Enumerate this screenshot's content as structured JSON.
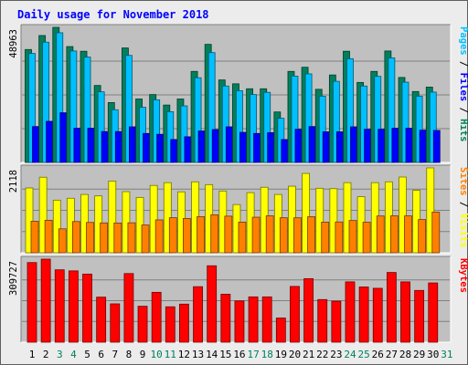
{
  "title": "Daily usage for November 2018",
  "chart_data": [
    {
      "type": "bar",
      "name": "hits-files-pages",
      "categories": [
        "1",
        "2",
        "3",
        "4",
        "5",
        "6",
        "7",
        "8",
        "9",
        "10",
        "11",
        "12",
        "13",
        "14",
        "15",
        "16",
        "17",
        "18",
        "19",
        "20",
        "21",
        "22",
        "23",
        "24",
        "25",
        "26",
        "27",
        "28",
        "29",
        "30",
        "31"
      ],
      "ymax_label": "48963",
      "ylim": [
        0,
        48963
      ],
      "side_label": [
        "Pages",
        " / ",
        "Files",
        " / ",
        "Hits"
      ],
      "series": [
        {
          "name": "Hits",
          "color": "#00805c",
          "values": [
            40930,
            46000,
            48963,
            42000,
            40300,
            27900,
            21700,
            41500,
            23000,
            24600,
            20800,
            23000,
            33000,
            42800,
            29900,
            28500,
            26700,
            26700,
            18300,
            33000,
            34500,
            26500,
            31700,
            40300,
            29000,
            33000,
            40400,
            30800,
            25700,
            27300,
            0
          ]
        },
        {
          "name": "Files",
          "color": "#00c0ff",
          "values": [
            39500,
            43600,
            47000,
            40400,
            38200,
            25600,
            19100,
            38800,
            20000,
            22700,
            18400,
            20500,
            30700,
            39800,
            27700,
            26000,
            24600,
            25400,
            16000,
            31300,
            32100,
            24000,
            29400,
            37600,
            27700,
            31200,
            37900,
            29100,
            24000,
            25500,
            0
          ]
        },
        {
          "name": "Pages",
          "color": "#0000ff",
          "values": [
            13000,
            14900,
            18000,
            12400,
            12400,
            11200,
            11200,
            12900,
            10500,
            10200,
            8300,
            9300,
            11400,
            11900,
            12900,
            10900,
            10500,
            10800,
            8300,
            12000,
            13000,
            11100,
            11100,
            12900,
            12000,
            12000,
            12400,
            12400,
            11700,
            11600,
            0
          ]
        }
      ]
    },
    {
      "type": "bar",
      "name": "visits-sites",
      "categories": [
        "1",
        "2",
        "3",
        "4",
        "5",
        "6",
        "7",
        "8",
        "9",
        "10",
        "11",
        "12",
        "13",
        "14",
        "15",
        "16",
        "17",
        "18",
        "19",
        "20",
        "21",
        "22",
        "23",
        "24",
        "25",
        "26",
        "27",
        "28",
        "29",
        "30",
        "31"
      ],
      "ymax_label": "2118",
      "ylim": [
        0,
        2118
      ],
      "side_label": [
        "Sites",
        " / ",
        "Visits"
      ],
      "series": [
        {
          "name": "Visits",
          "color": "#ffff00",
          "values": [
            1617,
            1885,
            1313,
            1360,
            1455,
            1420,
            1790,
            1525,
            1381,
            1680,
            1750,
            1520,
            1770,
            1700,
            1541,
            1203,
            1500,
            1635,
            1455,
            1661,
            1980,
            1610,
            1600,
            1750,
            1400,
            1750,
            1770,
            1890,
            1560,
            2118,
            0
          ]
        },
        {
          "name": "Sites",
          "color": "#ff8000",
          "values": [
            787,
            811,
            597,
            779,
            757,
            745,
            743,
            748,
            693,
            820,
            875,
            856,
            900,
            947,
            914,
            765,
            887,
            922,
            874,
            873,
            900,
            765,
            769,
            805,
            762,
            918,
            923,
            920,
            829,
            1015,
            0
          ]
        }
      ]
    },
    {
      "type": "bar",
      "name": "kbytes",
      "categories": [
        "1",
        "2",
        "3",
        "4",
        "5",
        "6",
        "7",
        "8",
        "9",
        "10",
        "11",
        "12",
        "13",
        "14",
        "15",
        "16",
        "17",
        "18",
        "19",
        "20",
        "21",
        "22",
        "23",
        "24",
        "25",
        "26",
        "27",
        "28",
        "29",
        "30",
        "31"
      ],
      "ymax_label": "309727",
      "ylim": [
        0,
        309727
      ],
      "side_label": [
        "KBytes"
      ],
      "series": [
        {
          "name": "KBytes",
          "color": "#ff0000",
          "values": [
            297000,
            309727,
            270000,
            266000,
            254000,
            168000,
            143000,
            256000,
            134000,
            186000,
            132000,
            142000,
            207000,
            285000,
            179000,
            154000,
            169000,
            169000,
            90000,
            208000,
            237000,
            159000,
            153000,
            225000,
            206000,
            201000,
            260000,
            225000,
            193000,
            221000,
            0
          ]
        }
      ]
    }
  ],
  "days": [
    "1",
    "2",
    "3",
    "4",
    "5",
    "6",
    "7",
    "8",
    "9",
    "10",
    "11",
    "12",
    "13",
    "14",
    "15",
    "16",
    "17",
    "18",
    "19",
    "20",
    "21",
    "22",
    "23",
    "24",
    "25",
    "26",
    "27",
    "28",
    "29",
    "30",
    "31"
  ],
  "weekend_days": [
    "3",
    "4",
    "10",
    "11",
    "17",
    "18",
    "24",
    "25",
    "31"
  ],
  "colors": {
    "title": "#0000ff",
    "panel": "#c0c0c0",
    "weekday": "#000000",
    "weekend": "#00805c",
    "slash": "#000000"
  }
}
